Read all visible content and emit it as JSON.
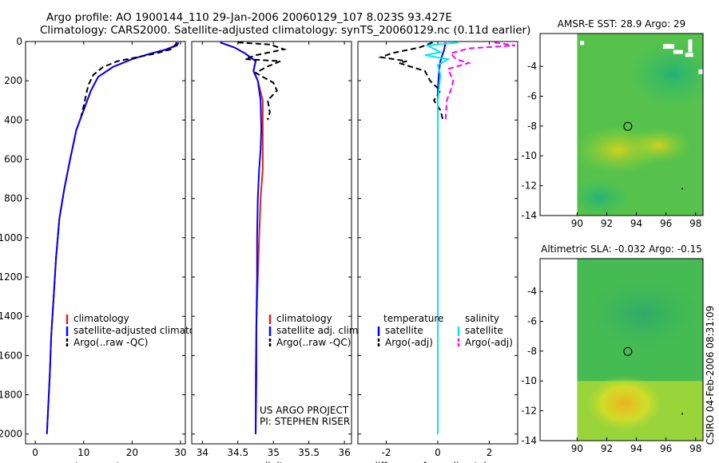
{
  "header": {
    "line1": "Argo profile: AO 1900144_110 29-Jan-2006 20060129_107 8.023S 93.427E",
    "line2": "Climatology: CARS2000. Satellite-adjusted climatology: synTS_20060129.nc (0.11d earlier)"
  },
  "credit": "CSIRO 04-Feb-2006 08:31:09",
  "colors": {
    "climatology": "#e02020",
    "satellite": "#0000ff",
    "argo": "#000000",
    "sal_satellite": "#00e5ff",
    "sal_argo": "#ff00ff"
  },
  "chart_data": [
    {
      "type": "line",
      "id": "temperature",
      "xlabel": "temperature",
      "ylabel": "",
      "xlim": [
        -2,
        31
      ],
      "ylim": [
        2050,
        0
      ],
      "xticks": [
        0,
        10,
        20,
        30
      ],
      "yticks": [
        0,
        200,
        400,
        600,
        800,
        1000,
        1200,
        1400,
        1600,
        1800,
        2000
      ],
      "legend": [
        "climatology",
        "satellite-adjusted climatology",
        "Argo(..raw -QC)"
      ],
      "series": [
        {
          "name": "climatology",
          "color": "climatology",
          "dash": "solid",
          "points": [
            [
              29.2,
              5
            ],
            [
              29,
              20
            ],
            [
              27,
              40
            ],
            [
              24,
              60
            ],
            [
              20,
              90
            ],
            [
              16,
              130
            ],
            [
              13,
              180
            ],
            [
              11.5,
              250
            ],
            [
              10,
              350
            ],
            [
              8.5,
              450
            ],
            [
              7.2,
              600
            ],
            [
              6,
              750
            ],
            [
              5,
              900
            ],
            [
              4.3,
              1100
            ],
            [
              3.8,
              1300
            ],
            [
              3.3,
              1500
            ],
            [
              3,
              1700
            ],
            [
              2.6,
              1900
            ],
            [
              2.4,
              2000
            ]
          ]
        },
        {
          "name": "satellite-adjusted climatology",
          "color": "satellite",
          "dash": "solid",
          "points": [
            [
              29.6,
              5
            ],
            [
              29.3,
              20
            ],
            [
              27.2,
              40
            ],
            [
              24,
              60
            ],
            [
              20,
              90
            ],
            [
              16,
              130
            ],
            [
              13,
              180
            ],
            [
              11.5,
              250
            ],
            [
              10,
              350
            ],
            [
              8.5,
              450
            ],
            [
              7.2,
              600
            ],
            [
              6,
              750
            ],
            [
              5,
              900
            ],
            [
              4.3,
              1100
            ],
            [
              3.8,
              1300
            ],
            [
              3.3,
              1500
            ],
            [
              3,
              1700
            ],
            [
              2.6,
              1900
            ],
            [
              2.4,
              2000
            ]
          ]
        },
        {
          "name": "Argo(..raw -QC)",
          "color": "argo",
          "dash": "dashed",
          "points": [
            [
              29.2,
              5
            ],
            [
              29,
              15
            ],
            [
              28,
              40
            ],
            [
              25,
              60
            ],
            [
              21,
              80
            ],
            [
              17,
              100
            ],
            [
              14,
              130
            ],
            [
              12,
              170
            ],
            [
              11,
              220
            ],
            [
              10.5,
              270
            ],
            [
              10,
              330
            ],
            [
              9.5,
              380
            ]
          ]
        }
      ]
    },
    {
      "type": "line",
      "id": "salinity",
      "xlabel": "salinity",
      "ylabel": "",
      "xlim": [
        33.85,
        36.1
      ],
      "ylim": [
        2050,
        0
      ],
      "xticks": [
        34,
        34.5,
        35,
        35.5,
        36
      ],
      "yticks": [
        0,
        200,
        400,
        600,
        800,
        1000,
        1200,
        1400,
        1600,
        1800,
        2000
      ],
      "legend": [
        "climatology",
        "satellite adj. clim.",
        "Argo(..raw -QC)"
      ],
      "series": [
        {
          "name": "climatology",
          "color": "climatology",
          "dash": "solid",
          "points": [
            [
              34.25,
              5
            ],
            [
              34.45,
              30
            ],
            [
              34.6,
              60
            ],
            [
              34.75,
              100
            ],
            [
              34.72,
              150
            ],
            [
              34.78,
              200
            ],
            [
              34.85,
              300
            ],
            [
              34.85,
              450
            ],
            [
              34.85,
              550
            ],
            [
              34.85,
              650
            ],
            [
              34.82,
              800
            ],
            [
              34.8,
              1000
            ],
            [
              34.78,
              1200
            ],
            [
              34.76,
              1450
            ],
            [
              34.75,
              1700
            ],
            [
              34.75,
              2000
            ]
          ]
        },
        {
          "name": "satellite adj. clim.",
          "color": "satellite",
          "dash": "solid",
          "points": [
            [
              34.25,
              5
            ],
            [
              34.45,
              30
            ],
            [
              34.6,
              60
            ],
            [
              34.75,
              100
            ],
            [
              34.72,
              150
            ],
            [
              34.78,
              200
            ],
            [
              34.82,
              300
            ],
            [
              34.83,
              450
            ],
            [
              34.82,
              550
            ],
            [
              34.8,
              650
            ],
            [
              34.78,
              800
            ],
            [
              34.77,
              1000
            ],
            [
              34.77,
              1200
            ],
            [
              34.76,
              1450
            ],
            [
              34.76,
              1700
            ],
            [
              34.75,
              2000
            ]
          ]
        },
        {
          "name": "Argo(..raw -QC)",
          "color": "argo",
          "dash": "dashed",
          "points": [
            [
              34.5,
              5
            ],
            [
              34.95,
              15
            ],
            [
              35.15,
              40
            ],
            [
              34.75,
              70
            ],
            [
              34.6,
              90
            ],
            [
              35.1,
              100
            ],
            [
              34.9,
              130
            ],
            [
              34.75,
              160
            ],
            [
              35,
              210
            ],
            [
              35.05,
              250
            ],
            [
              34.92,
              300
            ],
            [
              34.95,
              360
            ],
            [
              34.92,
              400
            ]
          ]
        }
      ]
    },
    {
      "type": "line",
      "id": "difference",
      "xlabel": "difference from climatology",
      "ylabel": "",
      "xlim": [
        -3.1,
        3.1
      ],
      "ylim": [
        2050,
        0
      ],
      "xticks": [
        -2,
        0,
        2
      ],
      "yticks": [
        0,
        200,
        400,
        600,
        800,
        1000,
        1200,
        1400,
        1600,
        1800,
        2000
      ],
      "legend_title_left": "temperature",
      "legend_title_right": "salinity",
      "legend": [
        "satellite",
        "Argo(-adj)",
        "satellite",
        "Argo(-adj)"
      ],
      "series": [
        {
          "name": "temperature satellite",
          "color": "satellite",
          "dash": "solid",
          "points": [
            [
              0.3,
              5
            ],
            [
              0.25,
              40
            ],
            [
              0.1,
              100
            ],
            [
              0.05,
              150
            ],
            [
              0,
              250
            ],
            [
              0,
              400
            ],
            [
              0,
              600
            ],
            [
              0,
              800
            ],
            [
              0,
              1000
            ],
            [
              0,
              1200
            ],
            [
              0,
              1400
            ],
            [
              0,
              1600
            ],
            [
              0,
              1800
            ],
            [
              0,
              2000
            ]
          ]
        },
        {
          "name": "temperature Argo(-adj)",
          "color": "argo",
          "dash": "dashed",
          "points": [
            [
              -0.2,
              5
            ],
            [
              -0.7,
              30
            ],
            [
              -1.8,
              60
            ],
            [
              -2.2,
              80
            ],
            [
              -1.2,
              100
            ],
            [
              -1.5,
              110
            ],
            [
              -1,
              130
            ],
            [
              -0.5,
              150
            ],
            [
              -0.3,
              200
            ],
            [
              0.1,
              250
            ],
            [
              -0.15,
              300
            ],
            [
              0.1,
              350
            ],
            [
              0.2,
              400
            ]
          ]
        },
        {
          "name": "salinity satellite",
          "color": "sal_satellite",
          "dash": "solid",
          "points": [
            [
              0.8,
              5
            ],
            [
              -0.4,
              20
            ],
            [
              -0.1,
              40
            ],
            [
              0.1,
              55
            ],
            [
              -0.5,
              70
            ],
            [
              0.4,
              90
            ],
            [
              0,
              120
            ],
            [
              0.1,
              170
            ],
            [
              0,
              300
            ],
            [
              0,
              500
            ],
            [
              0,
              700
            ],
            [
              0,
              900
            ],
            [
              0,
              1100
            ],
            [
              0,
              1300
            ],
            [
              0,
              1500
            ],
            [
              0,
              1700
            ],
            [
              0,
              2000
            ]
          ]
        },
        {
          "name": "salinity Argo(-adj)",
          "color": "sal_argo",
          "dash": "dashed",
          "points": [
            [
              2.2,
              5
            ],
            [
              3,
              20
            ],
            [
              1.2,
              35
            ],
            [
              0.5,
              60
            ],
            [
              0.7,
              90
            ],
            [
              1.2,
              110
            ],
            [
              0.4,
              140
            ],
            [
              0.6,
              200
            ],
            [
              0.5,
              250
            ],
            [
              0.35,
              300
            ],
            [
              0.3,
              400
            ]
          ]
        }
      ]
    },
    {
      "type": "heatmap",
      "id": "sst_map",
      "title": "AMSR-E SST: 28.9 Argo: 29",
      "xlim": [
        87.5,
        98.5
      ],
      "ylim": [
        -14,
        -1.8
      ],
      "xticks": [
        90,
        92,
        94,
        96,
        98
      ],
      "yticks": [
        -14,
        -12,
        -10,
        -8,
        -6,
        -4
      ],
      "float_marker": {
        "x": 93.427,
        "y": -8.023
      }
    },
    {
      "type": "heatmap",
      "id": "sla_map",
      "title": "Altimetric SLA: -0.032 Argo: -0.15",
      "xlim": [
        87.5,
        98.5
      ],
      "ylim": [
        -14,
        -1.8
      ],
      "xticks": [
        90,
        92,
        94,
        96,
        98
      ],
      "yticks": [
        -14,
        -12,
        -10,
        -8,
        -6,
        -4
      ],
      "float_marker": {
        "x": 93.427,
        "y": -8.023
      }
    }
  ],
  "annotations": {
    "project": "US ARGO PROJECT",
    "pi": "PI: STEPHEN RISER"
  }
}
